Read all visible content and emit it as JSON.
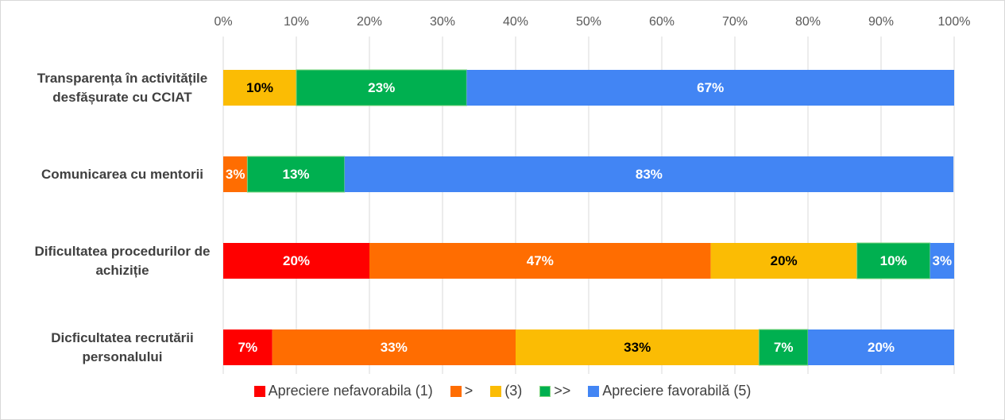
{
  "chart_data": {
    "type": "stacked-bar-horizontal",
    "categories": [
      "Transparența în activitățile desfășurate cu CCIAT",
      "Comunicarea cu mentorii",
      "Dificultatea procedurilor de achiziție",
      "Dicficultatea recrutării personalului"
    ],
    "series": [
      {
        "name": "Apreciere nefavorabila (1)",
        "color": "#ff0000",
        "label_color": "#ffffff",
        "values": [
          null,
          null,
          20,
          6.7
        ],
        "value_labels": [
          null,
          null,
          "20%",
          "7%"
        ]
      },
      {
        "name": ">",
        "color": "#ff6d01",
        "label_color": "#ffffff",
        "values": [
          null,
          3.3,
          46.7,
          33.3
        ],
        "value_labels": [
          null,
          "3%",
          "47%",
          "33%"
        ]
      },
      {
        "name": "(3)",
        "color": "#fbbc04",
        "label_color": "#000000",
        "values": [
          10,
          null,
          20,
          33.3
        ],
        "value_labels": [
          "10%",
          null,
          "20%",
          "33%"
        ]
      },
      {
        "name": ">>",
        "color": "#00b050",
        "label_color": "#ffffff",
        "values": [
          23.3,
          13.3,
          10,
          6.7
        ],
        "value_labels": [
          "23%",
          "13%",
          "10%",
          "7%"
        ]
      },
      {
        "name": "Apreciere favorabilă (5)",
        "color": "#4285f4",
        "label_color": "#ffffff",
        "values": [
          66.7,
          83.3,
          3.3,
          20
        ],
        "value_labels": [
          "67%",
          "83%",
          "3%",
          "20%"
        ]
      }
    ],
    "xlim": [
      0,
      100
    ],
    "xticks": [
      {
        "value": 0,
        "label": "0%"
      },
      {
        "value": 10,
        "label": "10%"
      },
      {
        "value": 20,
        "label": "20%"
      },
      {
        "value": 30,
        "label": "30%"
      },
      {
        "value": 40,
        "label": "40%"
      },
      {
        "value": 50,
        "label": "50%"
      },
      {
        "value": 60,
        "label": "60%"
      },
      {
        "value": 70,
        "label": "70%"
      },
      {
        "value": 80,
        "label": "80%"
      },
      {
        "value": 90,
        "label": "90%"
      },
      {
        "value": 100,
        "label": "100%"
      }
    ],
    "grid": true,
    "legend": "bottom"
  }
}
